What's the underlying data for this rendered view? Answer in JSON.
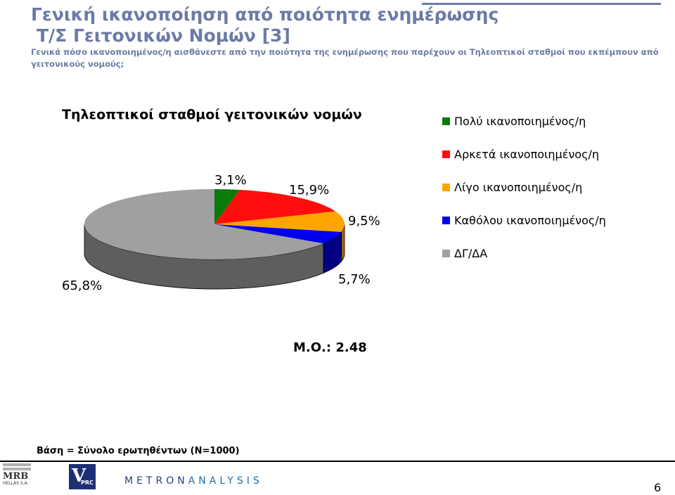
{
  "header": {
    "title_line1": "Γενική ικανοποίηση από ποιότητα ενημέρωσης",
    "title_line2": "Τ/Σ Γειτονικών Νομών [3]",
    "question": "Γενικά πόσο ικανοποιημένος/η αισθάνεστε από την ποιότητα της ενημέρωσης που παρέχουν οι Τηλεοπτικοί σταθμοί που εκπέμπουν από γειτονικούς νομούς;"
  },
  "chart_data": {
    "type": "pie",
    "title": "Τηλεοπτικοί σταθμοί γειτονικών νομών",
    "categories": [
      "Πολύ ικανοποιημένος/η",
      "Αρκετά ικανοποιημένος/η",
      "Λίγο ικανοποιημένος/η",
      "Καθόλου ικανοποιημένος/η",
      "ΔΓ/ΔΑ"
    ],
    "values": [
      3.1,
      15.9,
      9.5,
      5.7,
      65.8
    ],
    "labels": [
      "3,1%",
      "15,9%",
      "9,5%",
      "5,7%",
      "65,8%"
    ],
    "colors": [
      "#0a7a0a",
      "#ff0d0d",
      "#ffa500",
      "#0000ee",
      "#a0a0a0"
    ],
    "side_colors": [
      "#064a06",
      "#9a0808",
      "#9b6400",
      "#000080",
      "#5e5e5e"
    ],
    "legend_position": "right",
    "style": "3d-exploded"
  },
  "mean_label": "Μ.Ο.: 2.48",
  "base_label": "Βάση = Σύνολο ερωτηθέντων (Ν=1000)",
  "logos": {
    "mrb_text": "MRB",
    "mrb_sub": "HELLAS S.A.",
    "vprc_v": "V",
    "vprc_t": "PRC",
    "metron_a": "METRON",
    "metron_b": "ANALYSIS"
  },
  "page_number": "6"
}
